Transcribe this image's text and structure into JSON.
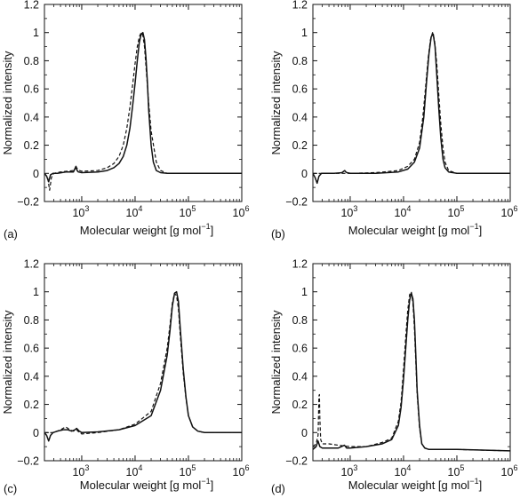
{
  "chart_data": [
    {
      "type": "line",
      "panel_label": "(a)",
      "xlabel_parts": [
        "Molecular weight [g mol",
        "−1",
        "]"
      ],
      "ylabel": "Normalized intensity",
      "x_scale": "log",
      "xlim": [
        200,
        1000000
      ],
      "ylim": [
        -0.2,
        1.2
      ],
      "x_ticks": [
        {
          "base": "10",
          "exp": "3"
        },
        {
          "base": "10",
          "exp": "4"
        },
        {
          "base": "10",
          "exp": "5"
        },
        {
          "base": "10",
          "exp": "6"
        }
      ],
      "y_ticks": [
        "1.2",
        "1",
        "0.8",
        "0.6",
        "0.4",
        "0.2",
        "0",
        "−0.2"
      ],
      "grid": false,
      "series": [
        {
          "style": "solid",
          "x": [
            200,
            220,
            240,
            260,
            290,
            350,
            500,
            700,
            780,
            820,
            860,
            1000,
            2000,
            3000,
            4000,
            5000,
            6000,
            7000,
            8000,
            9000,
            10000,
            11000,
            12000,
            13000,
            14000,
            15000,
            16000,
            17000,
            18000,
            20000,
            22000,
            25000,
            30000,
            40000,
            100000,
            1000000
          ],
          "y": [
            0.0,
            -0.02,
            -0.06,
            -0.01,
            0.0,
            0.0,
            0.01,
            0.01,
            0.05,
            0.02,
            0.01,
            0.005,
            0.01,
            0.02,
            0.04,
            0.07,
            0.12,
            0.2,
            0.32,
            0.48,
            0.64,
            0.8,
            0.93,
            0.99,
            1.0,
            0.95,
            0.82,
            0.65,
            0.45,
            0.2,
            0.08,
            0.02,
            0.005,
            0.0,
            0.0,
            0.0
          ]
        },
        {
          "style": "dashed",
          "x": [
            200,
            230,
            250,
            270,
            300,
            400,
            700,
            800,
            900,
            1000,
            2000,
            3000,
            4000,
            5000,
            6000,
            7000,
            8000,
            9000,
            10000,
            11000,
            12000,
            13000,
            14000,
            15000,
            16000,
            18000,
            20000,
            25000,
            30000,
            40000,
            100000,
            1000000
          ],
          "y": [
            0.0,
            -0.03,
            -0.12,
            -0.03,
            0.0,
            0.01,
            0.02,
            0.04,
            0.02,
            0.015,
            0.02,
            0.04,
            0.07,
            0.12,
            0.2,
            0.32,
            0.47,
            0.63,
            0.78,
            0.9,
            0.97,
            1.0,
            0.98,
            0.9,
            0.76,
            0.5,
            0.3,
            0.08,
            0.02,
            0.0,
            0.0,
            0.0
          ]
        }
      ]
    },
    {
      "type": "line",
      "panel_label": "(b)",
      "xlabel_parts": [
        "Molecular weight [g mol",
        "−1",
        "]"
      ],
      "ylabel": "Normalized intensity",
      "x_scale": "log",
      "xlim": [
        200,
        1000000
      ],
      "ylim": [
        -0.2,
        1.2
      ],
      "x_ticks": [
        {
          "base": "10",
          "exp": "3"
        },
        {
          "base": "10",
          "exp": "4"
        },
        {
          "base": "10",
          "exp": "5"
        },
        {
          "base": "10",
          "exp": "6"
        }
      ],
      "y_ticks": [
        "1.2",
        "1",
        "0.8",
        "0.6",
        "0.4",
        "0.2",
        "0",
        "−0.2"
      ],
      "grid": false,
      "series": [
        {
          "style": "solid",
          "x": [
            200,
            220,
            240,
            260,
            290,
            350,
            500,
            700,
            790,
            830,
            870,
            1000,
            3000,
            8000,
            12000,
            16000,
            20000,
            24000,
            27000,
            30000,
            33000,
            36000,
            39000,
            42000,
            46000,
            50000,
            55000,
            60000,
            70000,
            100000,
            1000000
          ],
          "y": [
            0.0,
            -0.03,
            -0.07,
            -0.02,
            0.0,
            0.0,
            0.0,
            0.005,
            0.02,
            0.01,
            0.005,
            0.0,
            0.0,
            0.01,
            0.03,
            0.08,
            0.18,
            0.4,
            0.65,
            0.85,
            0.97,
            0.99,
            0.9,
            0.7,
            0.45,
            0.25,
            0.1,
            0.04,
            0.01,
            0.0,
            0.0
          ]
        },
        {
          "style": "dashed",
          "x": [
            200,
            500,
            1000,
            3000,
            8000,
            12000,
            16000,
            20000,
            23000,
            26000,
            29000,
            32000,
            35000,
            38000,
            42000,
            46000,
            50000,
            55000,
            60000,
            70000,
            100000,
            1000000
          ],
          "y": [
            0.0,
            0.0,
            0.0,
            0.005,
            0.02,
            0.05,
            0.1,
            0.22,
            0.4,
            0.62,
            0.82,
            0.95,
            1.0,
            0.95,
            0.78,
            0.55,
            0.35,
            0.18,
            0.08,
            0.02,
            0.0,
            0.0
          ]
        }
      ]
    },
    {
      "type": "line",
      "panel_label": "(c)",
      "xlabel_parts": [
        "Molecular weight [g mol",
        "−1",
        "]"
      ],
      "ylabel": "Normalized intensity",
      "x_scale": "log",
      "xlim": [
        200,
        1000000
      ],
      "ylim": [
        -0.2,
        1.2
      ],
      "x_ticks": [
        {
          "base": "10",
          "exp": "3"
        },
        {
          "base": "10",
          "exp": "4"
        },
        {
          "base": "10",
          "exp": "5"
        },
        {
          "base": "10",
          "exp": "6"
        }
      ],
      "y_ticks": [
        "1.2",
        "1",
        "0.8",
        "0.6",
        "0.4",
        "0.2",
        "0",
        "−0.2"
      ],
      "grid": false,
      "series": [
        {
          "style": "solid",
          "x": [
            200,
            220,
            240,
            260,
            290,
            350,
            450,
            550,
            650,
            750,
            800,
            900,
            1000,
            2000,
            5000,
            10000,
            20000,
            30000,
            40000,
            45000,
            50000,
            55000,
            60000,
            65000,
            70000,
            80000,
            90000,
            100000,
            120000,
            150000,
            200000,
            1000000
          ],
          "y": [
            0.0,
            -0.02,
            -0.06,
            -0.02,
            0.0,
            0.01,
            0.02,
            0.02,
            0.01,
            0.02,
            0.03,
            0.01,
            0.0,
            0.005,
            0.02,
            0.05,
            0.12,
            0.3,
            0.55,
            0.72,
            0.9,
            0.99,
            1.0,
            0.93,
            0.75,
            0.45,
            0.25,
            0.12,
            0.04,
            0.01,
            0.0,
            0.0
          ]
        },
        {
          "style": "dashed",
          "x": [
            200,
            300,
            400,
            500,
            600,
            700,
            800,
            900,
            1000,
            2000,
            5000,
            10000,
            20000,
            30000,
            40000,
            45000,
            50000,
            55000,
            60000,
            65000,
            70000,
            80000,
            90000,
            100000,
            120000,
            150000,
            200000,
            1000000
          ],
          "y": [
            0.0,
            0.0,
            0.02,
            0.04,
            0.02,
            0.01,
            0.02,
            0.0,
            -0.01,
            0.0,
            0.02,
            0.06,
            0.15,
            0.35,
            0.6,
            0.76,
            0.92,
            0.99,
            0.97,
            0.88,
            0.7,
            0.42,
            0.24,
            0.12,
            0.04,
            0.01,
            0.0,
            0.0
          ]
        }
      ]
    },
    {
      "type": "line",
      "panel_label": "(d)",
      "xlabel_parts": [
        "Molecular weight [g mol",
        "−1",
        "]"
      ],
      "ylabel": "Normalized intensity",
      "x_scale": "log",
      "xlim": [
        200,
        1000000
      ],
      "ylim": [
        -0.2,
        1.2
      ],
      "x_ticks": [
        {
          "base": "10",
          "exp": "3"
        },
        {
          "base": "10",
          "exp": "4"
        },
        {
          "base": "10",
          "exp": "5"
        },
        {
          "base": "10",
          "exp": "6"
        }
      ],
      "y_ticks": [
        "1.2",
        "1",
        "0.8",
        "0.6",
        "0.4",
        "0.2",
        "0",
        "−0.2"
      ],
      "grid": false,
      "series": [
        {
          "style": "solid",
          "x": [
            200,
            230,
            250,
            270,
            300,
            400,
            600,
            780,
            820,
            860,
            1000,
            2000,
            4000,
            6000,
            8000,
            9000,
            10000,
            11000,
            12000,
            13000,
            14000,
            15000,
            16000,
            17000,
            18000,
            20000,
            22000,
            25000,
            30000,
            100000,
            1000000
          ],
          "y": [
            -0.12,
            -0.1,
            -0.06,
            -0.1,
            -0.11,
            -0.11,
            -0.11,
            -0.09,
            -0.1,
            -0.11,
            -0.11,
            -0.1,
            -0.08,
            -0.05,
            0.05,
            0.18,
            0.38,
            0.6,
            0.8,
            0.94,
            0.99,
            0.95,
            0.8,
            0.55,
            0.3,
            0.05,
            -0.08,
            -0.11,
            -0.12,
            -0.12,
            -0.13
          ]
        },
        {
          "style": "dashed",
          "x": [
            200,
            230,
            250,
            260,
            265,
            270,
            280,
            300,
            400,
            600,
            1000,
            2000,
            4000,
            6000,
            8000,
            9000,
            10000,
            11000,
            12000,
            13000,
            14000,
            15000,
            16000,
            17000,
            18000,
            20000,
            22000,
            25000,
            30000,
            100000,
            1000000
          ],
          "y": [
            -0.1,
            -0.08,
            -0.02,
            0.26,
            0.27,
            0.1,
            -0.05,
            -0.08,
            -0.08,
            -0.09,
            -0.1,
            -0.1,
            -0.07,
            -0.04,
            0.08,
            0.22,
            0.45,
            0.68,
            0.87,
            0.98,
            1.0,
            0.92,
            0.74,
            0.5,
            0.27,
            0.03,
            -0.08,
            -0.11,
            -0.12,
            -0.12,
            -0.13
          ]
        }
      ]
    }
  ]
}
